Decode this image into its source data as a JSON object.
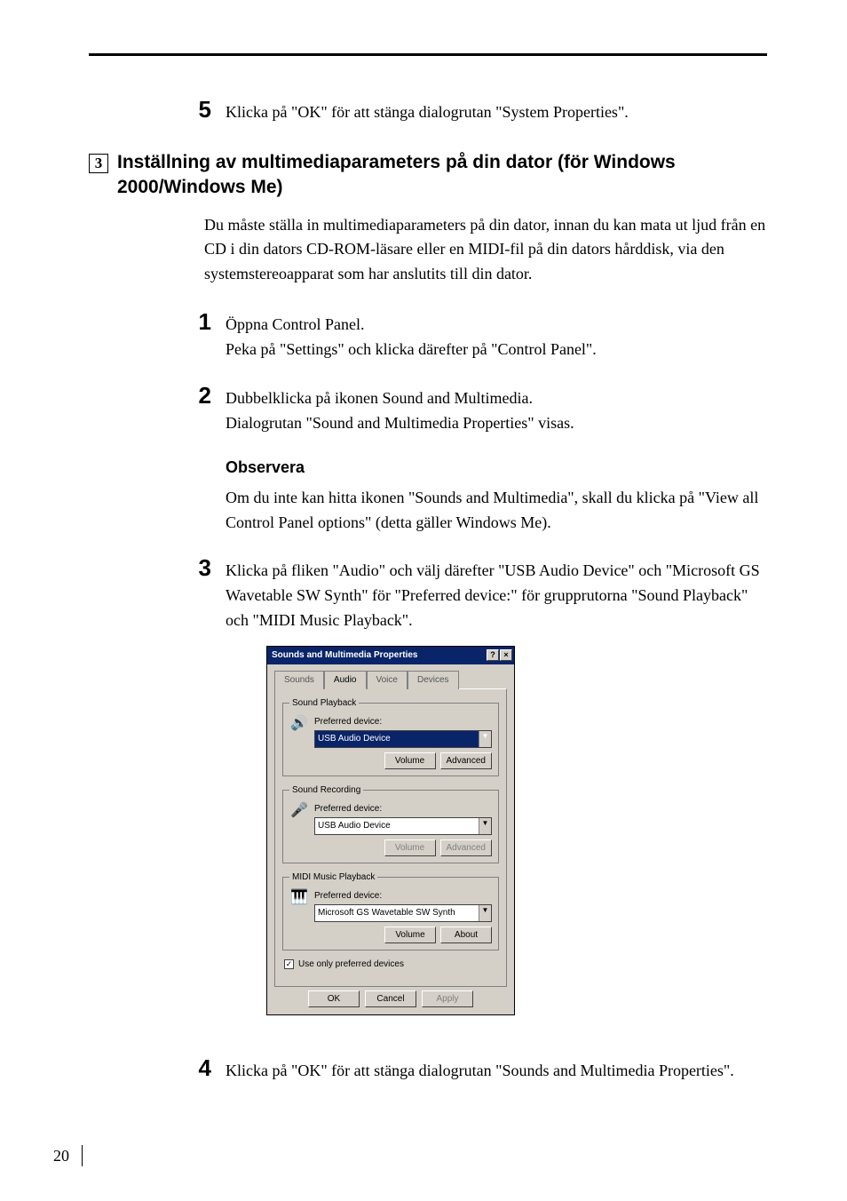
{
  "page_number": "20",
  "top_step": {
    "num": "5",
    "text": "Klicka på \"OK\" för att stänga dialogrutan \"System Properties\"."
  },
  "section": {
    "boxed_num": "3",
    "title": "Inställning av multimediaparameters på din dator (för Windows 2000/Windows Me)",
    "intro": "Du måste ställa in multimediaparameters på din dator, innan du kan mata ut ljud från en CD i din dators CD-ROM-läsare eller en MIDI-fil på din dators hårddisk, via den systemstereoapparat som har anslutits till din dator."
  },
  "steps": [
    {
      "num": "1",
      "lines": [
        "Öppna Control Panel.",
        "Peka på \"Settings\" och klicka därefter på \"Control Panel\"."
      ]
    },
    {
      "num": "2",
      "lines": [
        "Dubbelklicka på ikonen Sound and Multimedia.",
        "Dialogrutan \"Sound and Multimedia Properties\" visas."
      ],
      "note_heading": "Observera",
      "note_body": "Om du inte kan hitta ikonen \"Sounds and Multimedia\", skall du klicka på \"View all Control Panel options\" (detta gäller Windows Me)."
    },
    {
      "num": "3",
      "lines": [
        "Klicka på fliken \"Audio\" och välj därefter \"USB Audio Device\" och \"Microsoft GS Wavetable SW Synth\" för \"Preferred device:\" för grupprutorna \"Sound Playback\" och \"MIDI Music Playback\"."
      ]
    },
    {
      "num": "4",
      "lines": [
        "Klicka på \"OK\" för att stänga dialogrutan \"Sounds and Multimedia Properties\"."
      ]
    }
  ],
  "dialog": {
    "title": "Sounds and Multimedia Properties",
    "help_glyph": "?",
    "close_glyph": "×",
    "tabs": {
      "sounds": "Sounds",
      "audio": "Audio",
      "voice": "Voice",
      "devices": "Devices"
    },
    "groups": {
      "playback": {
        "legend": "Sound Playback",
        "pref_label": "Preferred device:",
        "value": "USB Audio Device",
        "btn_volume": "Volume",
        "btn_advanced": "Advanced",
        "icon": "🔊"
      },
      "recording": {
        "legend": "Sound Recording",
        "pref_label": "Preferred device:",
        "value": "USB Audio Device",
        "btn_volume": "Volume",
        "btn_advanced": "Advanced",
        "icon": "🎤"
      },
      "midi": {
        "legend": "MIDI Music Playback",
        "pref_label": "Preferred device:",
        "value": "Microsoft GS Wavetable SW Synth",
        "btn_volume": "Volume",
        "btn_about": "About",
        "icon": "🎹"
      }
    },
    "checkbox_label": "Use only preferred devices",
    "footer": {
      "ok": "OK",
      "cancel": "Cancel",
      "apply": "Apply"
    }
  }
}
